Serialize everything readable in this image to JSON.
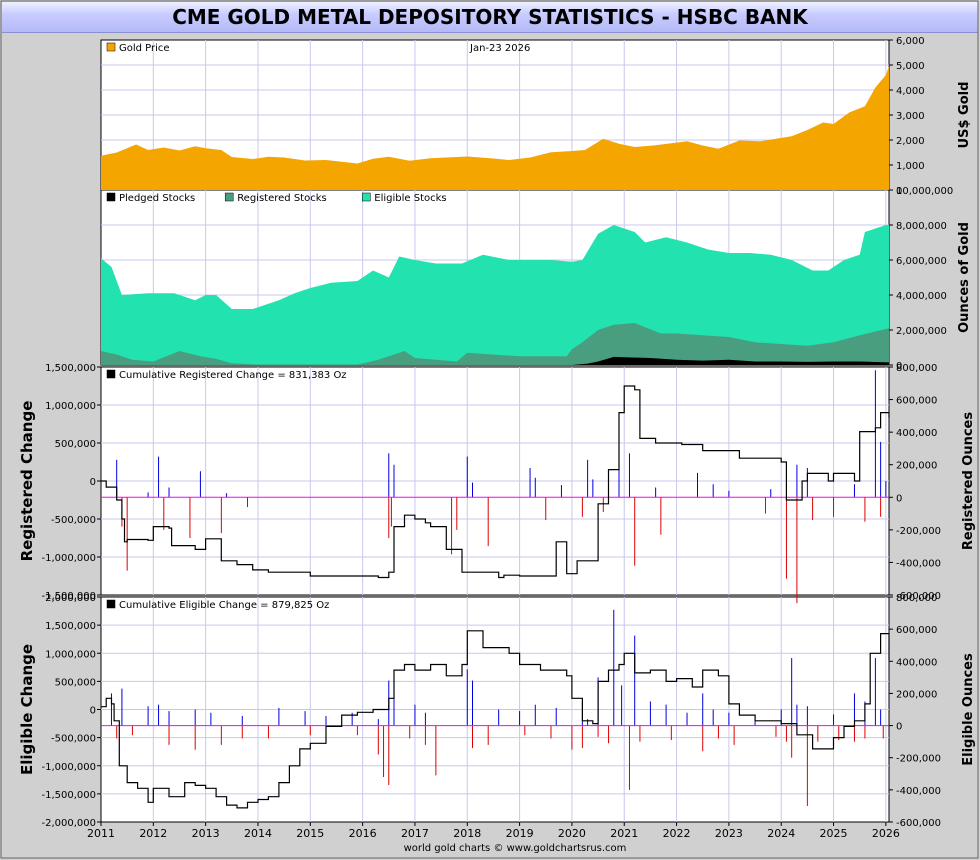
{
  "title": "CME GOLD METAL DEPOSITORY STATISTICS - HSBC BANK",
  "footer": "world gold charts © www.goldchartsrus.com",
  "colors": {
    "gold": "#f5a500",
    "pledged": "#000000",
    "registered": "#4a9e80",
    "eligible": "#22e3b0",
    "positive_change": "#0000dd",
    "negative_change": "#dd0000",
    "zero_line": "#ff00ff",
    "grid": "#c8c8ee"
  },
  "chart_data": [
    {
      "id": "gold",
      "type": "area",
      "legend": [
        "Gold Price"
      ],
      "annotation": "Jan-23  2026",
      "ylabel_right": "US$ Gold",
      "ylim_right": [
        0,
        6000
      ],
      "yticks_right": [
        "0",
        "1,000",
        "2,000",
        "3,000",
        "4,000",
        "5,000",
        "6,000"
      ],
      "series": [
        {
          "name": "Gold Price",
          "x": [
            2011.0,
            2011.3,
            2011.67,
            2011.9,
            2012.2,
            2012.5,
            2012.8,
            2013.0,
            2013.3,
            2013.5,
            2013.9,
            2014.2,
            2014.5,
            2014.9,
            2015.3,
            2015.9,
            2016.2,
            2016.5,
            2016.9,
            2017.3,
            2017.7,
            2018.0,
            2018.5,
            2018.8,
            2019.2,
            2019.6,
            2020.0,
            2020.25,
            2020.6,
            2020.9,
            2021.2,
            2021.6,
            2022.2,
            2022.5,
            2022.8,
            2023.2,
            2023.6,
            2023.9,
            2024.2,
            2024.5,
            2024.8,
            2025.0,
            2025.3,
            2025.6,
            2025.8,
            2026.0,
            2026.06
          ],
          "y": [
            1370,
            1500,
            1820,
            1600,
            1700,
            1580,
            1750,
            1670,
            1600,
            1320,
            1240,
            1330,
            1300,
            1180,
            1200,
            1060,
            1250,
            1330,
            1170,
            1270,
            1310,
            1340,
            1260,
            1200,
            1300,
            1510,
            1560,
            1600,
            2050,
            1850,
            1720,
            1790,
            1950,
            1780,
            1650,
            1980,
            1950,
            2050,
            2150,
            2400,
            2700,
            2640,
            3100,
            3350,
            4100,
            4600,
            4950
          ]
        }
      ]
    },
    {
      "id": "stocks",
      "type": "area",
      "legend": [
        "Pledged Stocks",
        "Registered Stocks",
        "Eligible Stocks"
      ],
      "ylabel_right": "Ounces of Gold",
      "ylim_right": [
        0,
        10000000
      ],
      "yticks_right": [
        "0",
        "2,000,000",
        "4,000,000",
        "6,000,000",
        "8,000,000",
        "10,000,000"
      ],
      "series": [
        {
          "name": "Eligible Stocks",
          "x": [
            2011.0,
            2011.2,
            2011.4,
            2011.9,
            2012.4,
            2012.8,
            2013.0,
            2013.2,
            2013.5,
            2013.9,
            2014.4,
            2014.7,
            2015.0,
            2015.4,
            2015.9,
            2016.2,
            2016.5,
            2016.7,
            2017.0,
            2017.4,
            2017.9,
            2018.3,
            2018.8,
            2019.2,
            2019.6,
            2020.0,
            2020.2,
            2020.5,
            2020.8,
            2021.2,
            2021.4,
            2021.8,
            2022.2,
            2022.6,
            2023.0,
            2023.4,
            2023.8,
            2024.2,
            2024.6,
            2024.9,
            2025.2,
            2025.5,
            2025.6,
            2026.0,
            2026.06
          ],
          "y": [
            6100,
            5600,
            4000,
            4100,
            4100,
            3700,
            4000,
            4000,
            3200,
            3200,
            3700,
            4100,
            4400,
            4700,
            4800,
            5400,
            5000,
            6200,
            6000,
            5800,
            5800,
            6300,
            6000,
            6000,
            6000,
            5900,
            6000,
            7500,
            8000,
            7600,
            7000,
            7300,
            7000,
            6600,
            6400,
            6400,
            6300,
            6000,
            5400,
            5400,
            6000,
            6300,
            7600,
            8000,
            8000
          ]
        },
        {
          "name": "Registered Stocks",
          "x": [
            2011.0,
            2011.3,
            2011.6,
            2012.0,
            2012.5,
            2012.9,
            2013.2,
            2013.5,
            2014.0,
            2015.0,
            2015.9,
            2016.3,
            2016.8,
            2017.0,
            2017.8,
            2018.0,
            2019.0,
            2019.9,
            2020.0,
            2020.2,
            2020.5,
            2020.8,
            2021.2,
            2021.7,
            2022.0,
            2023.0,
            2023.5,
            2024.0,
            2024.5,
            2025.0,
            2025.5,
            2026.06
          ],
          "y": [
            800,
            600,
            300,
            200,
            800,
            500,
            350,
            100,
            30,
            30,
            30,
            300,
            800,
            400,
            200,
            700,
            500,
            500,
            900,
            1300,
            2000,
            2300,
            2400,
            1800,
            1800,
            1600,
            1300,
            1200,
            1100,
            1300,
            1700,
            2100
          ]
        },
        {
          "name": "Pledged Stocks",
          "x": [
            2011.0,
            2020.0,
            2020.3,
            2020.5,
            2020.8,
            2021.5,
            2022.0,
            2022.5,
            2023.0,
            2023.5,
            2024.0,
            2024.5,
            2025.0,
            2025.5,
            2026.06
          ],
          "y": [
            0,
            0,
            80,
            200,
            460,
            400,
            300,
            250,
            300,
            200,
            200,
            180,
            200,
            200,
            150
          ]
        }
      ],
      "values_unit": "thousand oz"
    },
    {
      "id": "registered-change",
      "type": "line",
      "legend": [
        "Cumulative Registered Change  =  831,383 Oz"
      ],
      "ylabel_left": "Registered Change",
      "ylabel_right": "Registered Ounces",
      "ylim_left": [
        -1500000,
        1500000
      ],
      "yticks_left": [
        "-1,500,000",
        "-1,000,000",
        "-500,000",
        "0",
        "500,000",
        "1,000,000",
        "1,500,000"
      ],
      "ylim_right": [
        -600000,
        800000
      ],
      "yticks_right": [
        "-600,000",
        "-400,000",
        "-200,000",
        "0",
        "200,000",
        "400,000",
        "600,000",
        "800,000"
      ],
      "series": [
        {
          "name": "Cumulative Registered Change",
          "x": [
            2011.0,
            2011.1,
            2011.3,
            2011.4,
            2011.45,
            2011.5,
            2011.9,
            2012.0,
            2012.3,
            2012.35,
            2012.8,
            2013.0,
            2013.3,
            2013.6,
            2013.9,
            2014.2,
            2015.0,
            2015.5,
            2016.0,
            2016.3,
            2016.5,
            2016.6,
            2016.8,
            2017.0,
            2017.2,
            2017.3,
            2017.6,
            2017.9,
            2018.0,
            2018.6,
            2018.7,
            2019.0,
            2019.3,
            2019.7,
            2019.9,
            2020.1,
            2020.5,
            2020.7,
            2020.9,
            2021.0,
            2021.2,
            2021.3,
            2021.6,
            2021.9,
            2022.1,
            2022.5,
            2023.0,
            2023.2,
            2023.5,
            2024.0,
            2024.1,
            2024.4,
            2024.5,
            2024.9,
            2025.0,
            2025.4,
            2025.5,
            2025.8,
            2025.9,
            2026.06
          ],
          "y": [
            0,
            -80000,
            -250000,
            -500000,
            -800000,
            -770000,
            -780000,
            -600000,
            -620000,
            -850000,
            -900000,
            -760000,
            -1050000,
            -1100000,
            -1170000,
            -1200000,
            -1250000,
            -1250000,
            -1250000,
            -1270000,
            -1200000,
            -600000,
            -450000,
            -500000,
            -550000,
            -600000,
            -900000,
            -1200000,
            -1200000,
            -1270000,
            -1240000,
            -1250000,
            -1250000,
            -800000,
            -1220000,
            -1050000,
            -300000,
            150000,
            900000,
            1250000,
            1200000,
            560000,
            500000,
            500000,
            480000,
            400000,
            400000,
            300000,
            300000,
            250000,
            -250000,
            0,
            100000,
            0,
            100000,
            0,
            650000,
            700000,
            900000,
            831383
          ]
        }
      ],
      "bars": {
        "x": [
          2011.3,
          2011.9,
          2012.1,
          2012.3,
          2012.9,
          2013.4,
          2016.5,
          2016.6,
          2018.0,
          2018.1,
          2019.2,
          2019.3,
          2019.8,
          2020.3,
          2020.4,
          2020.9,
          2021.1,
          2021.6,
          2022.4,
          2022.7,
          2023.0,
          2023.8,
          2024.3,
          2024.5,
          2025.4,
          2025.8,
          2025.9,
          2026.0,
          2011.4,
          2011.5,
          2012.2,
          2012.7,
          2013.3,
          2013.8,
          2016.5,
          2016.55,
          2017.7,
          2017.8,
          2018.4,
          2019.5,
          2020.2,
          2020.6,
          2021.2,
          2021.7,
          2023.7,
          2024.1,
          2024.3,
          2024.6,
          2025.0,
          2025.6,
          2025.9
        ],
        "y": [
          230000,
          30000,
          250000,
          60000,
          160000,
          25000,
          270000,
          200000,
          250000,
          90000,
          180000,
          120000,
          75000,
          230000,
          110000,
          320000,
          270000,
          60000,
          150000,
          80000,
          40000,
          50000,
          200000,
          180000,
          80000,
          780000,
          340000,
          100000,
          -180000,
          -450000,
          -200000,
          -250000,
          -220000,
          -60000,
          -250000,
          -180000,
          -350000,
          -200000,
          -300000,
          -140000,
          -120000,
          -90000,
          -420000,
          -230000,
          -100000,
          -500000,
          -650000,
          -140000,
          -120000,
          -150000,
          -120000
        ]
      }
    },
    {
      "id": "eligible-change",
      "type": "line",
      "legend": [
        "Cumulative Eligible Change  =  879,825 Oz"
      ],
      "ylabel_left": "Eligible Change",
      "ylabel_right": "Eligible Ounces",
      "xticks": [
        "2011",
        "2012",
        "2013",
        "2014",
        "2015",
        "2016",
        "2017",
        "2018",
        "2019",
        "2020",
        "2021",
        "2022",
        "2023",
        "2024",
        "2025",
        "2026"
      ],
      "ylim_left": [
        -2000000,
        2000000
      ],
      "yticks_left": [
        "-2,000,000",
        "-1,500,000",
        "-1,000,000",
        "-500,000",
        "0",
        "500,000",
        "1,000,000",
        "1,500,000",
        "2,000,000"
      ],
      "ylim_right": [
        -600000,
        800000
      ],
      "yticks_right": [
        "-600,000",
        "-400,000",
        "-200,000",
        "0",
        "200,000",
        "400,000",
        "600,000",
        "800,000"
      ],
      "series": [
        {
          "name": "Cumulative Eligible Change",
          "x": [
            2011.0,
            2011.1,
            2011.2,
            2011.25,
            2011.35,
            2011.5,
            2011.7,
            2011.9,
            2012.0,
            2012.3,
            2012.6,
            2012.8,
            2013.0,
            2013.2,
            2013.4,
            2013.6,
            2013.8,
            2014.0,
            2014.2,
            2014.4,
            2014.6,
            2014.8,
            2015.0,
            2015.3,
            2015.6,
            2015.9,
            2016.2,
            2016.5,
            2016.6,
            2016.8,
            2017.0,
            2017.3,
            2017.6,
            2017.9,
            2018.0,
            2018.3,
            2018.6,
            2018.8,
            2019.0,
            2019.4,
            2019.7,
            2019.9,
            2020.0,
            2020.2,
            2020.4,
            2020.5,
            2020.7,
            2020.9,
            2021.0,
            2021.2,
            2021.5,
            2021.8,
            2022.0,
            2022.3,
            2022.5,
            2022.8,
            2023.0,
            2023.2,
            2023.5,
            2023.9,
            2024.0,
            2024.3,
            2024.6,
            2024.9,
            2025.0,
            2025.2,
            2025.4,
            2025.6,
            2025.7,
            2025.9,
            2026.06
          ],
          "y": [
            50000,
            200000,
            100000,
            -200000,
            -1000000,
            -1300000,
            -1400000,
            -1650000,
            -1400000,
            -1550000,
            -1300000,
            -1350000,
            -1400000,
            -1550000,
            -1700000,
            -1750000,
            -1650000,
            -1600000,
            -1550000,
            -1300000,
            -1000000,
            -700000,
            -600000,
            -300000,
            -100000,
            -50000,
            0,
            200000,
            700000,
            800000,
            700000,
            800000,
            600000,
            800000,
            1400000,
            1100000,
            1100000,
            1000000,
            800000,
            700000,
            700000,
            600000,
            200000,
            -200000,
            -250000,
            500000,
            700000,
            800000,
            1000000,
            650000,
            700000,
            500000,
            550000,
            400000,
            700000,
            600000,
            100000,
            -100000,
            -200000,
            -200000,
            -250000,
            -450000,
            -700000,
            -700000,
            -500000,
            -300000,
            -200000,
            100000,
            1000000,
            1350000,
            879825
          ]
        }
      ],
      "bars": {
        "x": [
          2011.2,
          2011.4,
          2011.9,
          2012.1,
          2012.3,
          2012.8,
          2013.1,
          2013.7,
          2014.4,
          2014.9,
          2015.3,
          2015.8,
          2016.3,
          2016.5,
          2016.6,
          2017.0,
          2017.2,
          2018.0,
          2018.1,
          2018.6,
          2019.0,
          2019.3,
          2019.7,
          2020.2,
          2020.3,
          2020.5,
          2020.8,
          2020.95,
          2021.2,
          2021.5,
          2021.8,
          2022.2,
          2022.5,
          2022.7,
          2023.0,
          2023.5,
          2024.0,
          2024.2,
          2024.3,
          2024.5,
          2025.0,
          2025.4,
          2025.6,
          2025.8,
          2025.9,
          2011.3,
          2011.6,
          2012.3,
          2012.8,
          2013.3,
          2013.7,
          2014.2,
          2015.0,
          2015.9,
          2016.3,
          2016.4,
          2016.5,
          2016.9,
          2017.2,
          2017.4,
          2018.1,
          2018.4,
          2019.1,
          2019.6,
          2020.0,
          2020.2,
          2020.5,
          2020.7,
          2021.1,
          2021.3,
          2021.9,
          2022.5,
          2022.8,
          2023.1,
          2023.9,
          2024.1,
          2024.2,
          2024.5,
          2024.7,
          2025.1,
          2025.4,
          2025.6,
          2025.95
        ],
        "y": [
          200000,
          230000,
          120000,
          130000,
          90000,
          100000,
          80000,
          60000,
          110000,
          90000,
          60000,
          80000,
          40000,
          280000,
          200000,
          130000,
          80000,
          350000,
          280000,
          100000,
          90000,
          130000,
          110000,
          150000,
          40000,
          300000,
          720000,
          250000,
          560000,
          150000,
          130000,
          80000,
          200000,
          100000,
          80000,
          60000,
          100000,
          420000,
          130000,
          120000,
          70000,
          200000,
          150000,
          420000,
          100000,
          -80000,
          -60000,
          -120000,
          -150000,
          -120000,
          -80000,
          -80000,
          -60000,
          -60000,
          -180000,
          -320000,
          -370000,
          -80000,
          -120000,
          -310000,
          -140000,
          -120000,
          -60000,
          -80000,
          -150000,
          -140000,
          -70000,
          -110000,
          -400000,
          -100000,
          -90000,
          -160000,
          -80000,
          -120000,
          -70000,
          -100000,
          -200000,
          -500000,
          -100000,
          -90000,
          -100000,
          -80000,
          -80000
        ]
      }
    }
  ]
}
